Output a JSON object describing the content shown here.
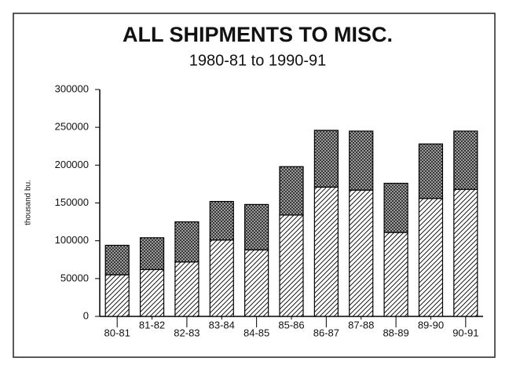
{
  "chart_data": {
    "type": "bar",
    "stacked": true,
    "title": "ALL SHIPMENTS TO MISC.",
    "subtitle": "1980-81 to 1990-91",
    "y_label": "thousand bu.",
    "categories": [
      "80-81",
      "81-82",
      "82-83",
      "83-84",
      "84-85",
      "85-86",
      "86-87",
      "87-88",
      "88-89",
      "89-90",
      "90-91"
    ],
    "series": [
      {
        "color": "#000000",
        "values": [
          55000,
          62000,
          72000,
          101000,
          88000,
          134000,
          171000,
          167000,
          111000,
          156000,
          168000
        ]
      },
      {
        "color": "#000000",
        "values": [
          39000,
          42000,
          53000,
          51000,
          60000,
          64000,
          75000,
          78000,
          65000,
          72000,
          77000
        ]
      }
    ],
    "ylim": [
      0,
      300000
    ],
    "yticks": [
      0,
      50000,
      100000,
      150000,
      200000,
      250000,
      300000
    ],
    "grid": false
  }
}
